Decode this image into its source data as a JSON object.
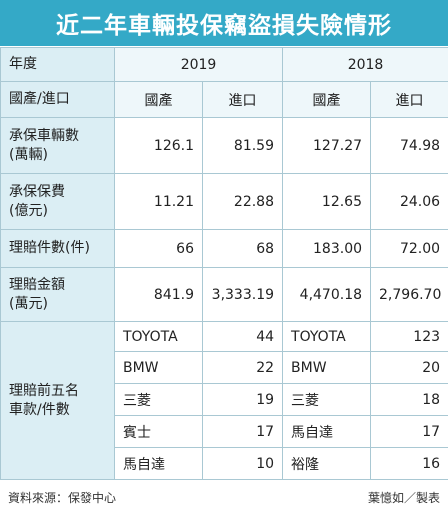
{
  "title": "近二年車輛投保竊盜損失險情形",
  "header": {
    "year_label": "年度",
    "year1": "2019",
    "year2": "2018",
    "cat_label": "國產/進口",
    "domestic": "國產",
    "imported": "進口"
  },
  "rows": [
    {
      "label": "承保車輛數\n(萬輛)",
      "v": [
        "126.1",
        "81.59",
        "127.27",
        "74.98"
      ]
    },
    {
      "label": "承保保費\n(億元)",
      "v": [
        "11.21",
        "22.88",
        "12.65",
        "24.06"
      ]
    },
    {
      "label": "理賠件數(件)",
      "v": [
        "66",
        "68",
        "183.00",
        "72.00"
      ]
    },
    {
      "label": "理賠金額\n(萬元)",
      "v": [
        "841.9",
        "3,333.19",
        "4,470.18",
        "2,796.70"
      ]
    }
  ],
  "top5": {
    "label": "理賠前五名\n車款/件數",
    "items": [
      {
        "car2019": "TOYOTA",
        "n2019": "44",
        "car2018": "TOYOTA",
        "n2018": "123"
      },
      {
        "car2019": "BMW",
        "n2019": "22",
        "car2018": "BMW",
        "n2018": "20"
      },
      {
        "car2019": "三菱",
        "n2019": "19",
        "car2018": "三菱",
        "n2018": "18"
      },
      {
        "car2019": "賓士",
        "n2019": "17",
        "car2018": "馬自達",
        "n2018": "17"
      },
      {
        "car2019": "馬自達",
        "n2019": "10",
        "car2018": "裕隆",
        "n2018": "16"
      }
    ]
  },
  "footer": {
    "source": "資料來源：保發中心",
    "credit": "葉憶如／製表"
  }
}
